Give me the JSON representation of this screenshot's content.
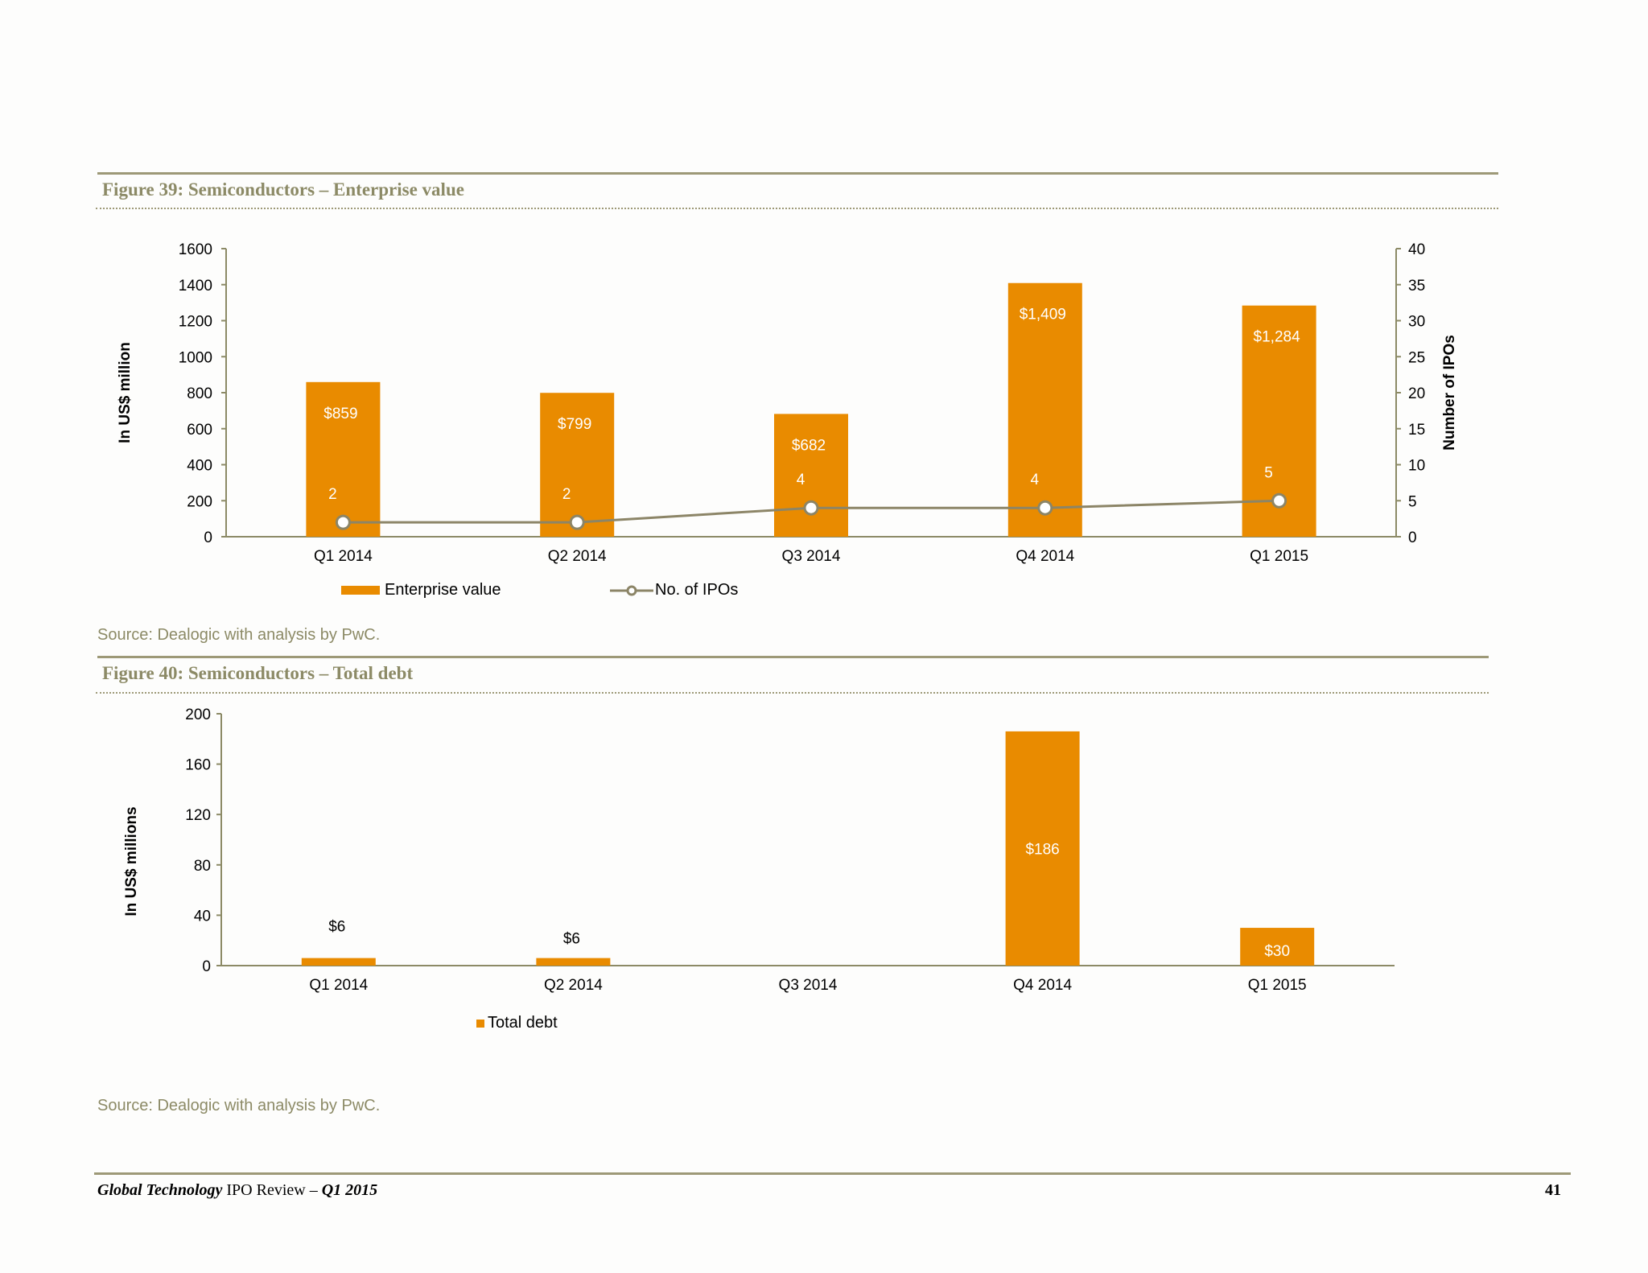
{
  "figure39": {
    "title": "Figure 39: Semiconductors – Enterprise value",
    "source": "Source: Dealogic with analysis by PwC."
  },
  "figure40": {
    "title": "Figure 40: Semiconductors – Total debt",
    "source": "Source: Dealogic with analysis by PwC."
  },
  "footer": {
    "title_italic": "Global Technology",
    "title_regular": " IPO Review – ",
    "title_quarter": "Q1 2015",
    "page_number": "41"
  },
  "colors": {
    "bar": "#e98b00",
    "line": "#8c8567",
    "axis": "#8c8a66",
    "rule": "#9d9977"
  },
  "chart_data": [
    {
      "type": "bar",
      "title": "Figure 39: Semiconductors – Enterprise value",
      "categories": [
        "Q1 2014",
        "Q2 2014",
        "Q3 2014",
        "Q4 2014",
        "Q1 2015"
      ],
      "series": [
        {
          "name": "Enterprise value",
          "type": "bar",
          "axis": "left",
          "values": [
            859,
            799,
            682,
            1409,
            1284
          ],
          "labels": [
            "$859",
            "$799",
            "$682",
            "$1,409",
            "$1,284"
          ]
        },
        {
          "name": "No. of IPOs",
          "type": "line",
          "axis": "right",
          "values": [
            2,
            2,
            4,
            4,
            5
          ],
          "labels": [
            "2",
            "2",
            "4",
            "4",
            "5"
          ]
        }
      ],
      "ylabel": "In US$ million",
      "y2label": "Number of IPOs",
      "ylim": [
        0,
        1600
      ],
      "yticks": [
        0,
        200,
        400,
        600,
        800,
        1000,
        1200,
        1400,
        1600
      ],
      "y2lim": [
        0,
        40
      ],
      "y2ticks": [
        0,
        5,
        10,
        15,
        20,
        25,
        30,
        35,
        40
      ],
      "grid": false,
      "legend": "bottom"
    },
    {
      "type": "bar",
      "title": "Figure 40: Semiconductors – Total debt",
      "categories": [
        "Q1 2014",
        "Q2 2014",
        "Q3 2014",
        "Q4 2014",
        "Q1 2015"
      ],
      "series": [
        {
          "name": "Total debt",
          "values": [
            6,
            6,
            0,
            186,
            30
          ],
          "labels": [
            "$6",
            "$6",
            "",
            "$186",
            "$30"
          ]
        }
      ],
      "ylabel": "In US$ millions",
      "ylim": [
        0,
        200
      ],
      "yticks": [
        0,
        40,
        80,
        120,
        160,
        200
      ],
      "grid": false,
      "legend": "bottom"
    }
  ]
}
